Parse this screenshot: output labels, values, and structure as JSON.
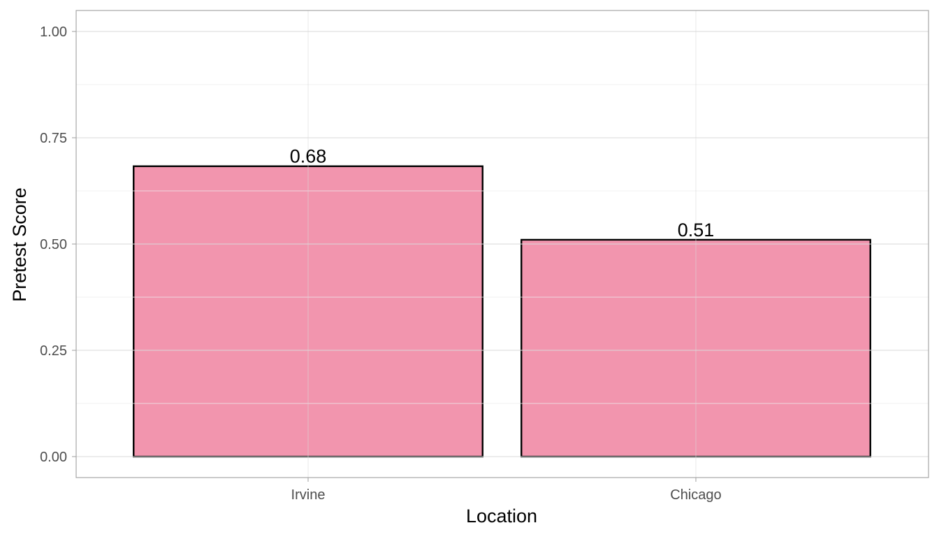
{
  "chart_data": {
    "type": "bar",
    "categories": [
      "Irvine",
      "Chicago"
    ],
    "values": [
      0.683,
      0.51
    ],
    "data_labels": [
      "0.68",
      "0.51"
    ],
    "title": "",
    "xlabel": "Location",
    "ylabel": "Pretest Score",
    "ylim": [
      0,
      1
    ],
    "yticks": [
      0,
      0.25,
      0.5,
      0.75,
      1
    ],
    "ytick_labels": [
      "0.00",
      "0.25",
      "0.50",
      "0.75",
      "1.00"
    ],
    "grid": true,
    "legend": "none",
    "bar_fill": "#ee7797",
    "bar_fill_opacity": 0.78,
    "bar_stroke": "#000000"
  }
}
